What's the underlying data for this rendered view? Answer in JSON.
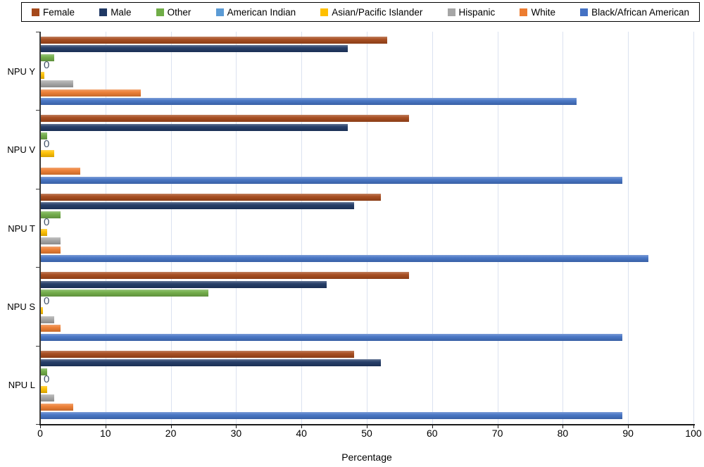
{
  "chart_data": {
    "type": "bar",
    "orientation": "horizontal-grouped",
    "title": "",
    "xlabel": "Percentage",
    "ylabel": "",
    "xlim": [
      0,
      100
    ],
    "xticks": [
      0,
      10,
      20,
      30,
      40,
      50,
      60,
      70,
      80,
      90,
      100
    ],
    "grid": true,
    "legend_position": "top",
    "categories": [
      "NPU Y",
      "NPU V",
      "NPU T",
      "NPU S",
      "NPU L"
    ],
    "series": [
      {
        "name": "Female",
        "color": "#A5491B",
        "values": [
          53,
          56.4,
          52,
          56.4,
          48
        ]
      },
      {
        "name": "Male",
        "color": "#1F3864",
        "values": [
          47,
          47,
          48,
          43.7,
          52
        ]
      },
      {
        "name": "Other",
        "color": "#70AD47",
        "values": [
          2,
          1,
          3,
          25.7,
          1
        ]
      },
      {
        "name": "American Indian",
        "color": "#5B9BD5",
        "values": [
          0,
          0,
          0,
          0,
          0
        ],
        "data_labels": true
      },
      {
        "name": "Asian/Pacific Islander",
        "color": "#FFC000",
        "values": [
          0.5,
          2,
          1,
          0.3,
          1
        ]
      },
      {
        "name": "Hispanic",
        "color": "#A6A6A6",
        "values": [
          5,
          0,
          3,
          2,
          2
        ]
      },
      {
        "name": "White",
        "color": "#ED7D31",
        "values": [
          15.3,
          6,
          3,
          3,
          5
        ]
      },
      {
        "name": "Black/African American",
        "color": "#4472C4",
        "values": [
          82,
          89,
          93,
          89,
          89
        ]
      }
    ],
    "data_label_color": "#44546A",
    "gridline_color": "#DBE2F0",
    "axis_color": "#1A1A1A"
  }
}
